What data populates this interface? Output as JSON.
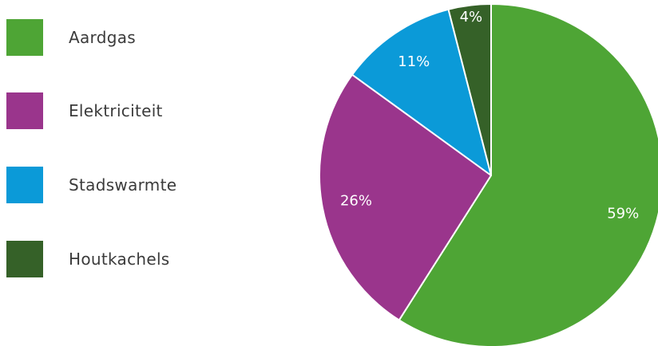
{
  "chart_data": {
    "type": "pie",
    "title": "",
    "slices": [
      {
        "name": "Aardgas",
        "value": 59,
        "label": "59%",
        "color": "#4ea535"
      },
      {
        "name": "Elektriciteit",
        "value": 26,
        "label": "26%",
        "color": "#9a358c"
      },
      {
        "name": "Stadswarmte",
        "value": 11,
        "label": "11%",
        "color": "#0b9ad8"
      },
      {
        "name": "Houtkachels",
        "value": 4,
        "label": "4%",
        "color": "#356128"
      }
    ],
    "legend_position": "left",
    "start_angle": "top, clockwise"
  }
}
